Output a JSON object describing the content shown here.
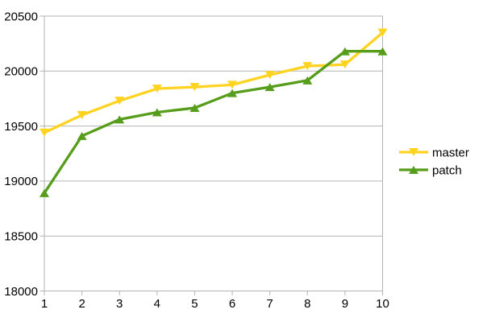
{
  "chart_data": {
    "type": "line",
    "title": "",
    "xlabel": "",
    "ylabel": "",
    "x": [
      "1",
      "2",
      "3",
      "4",
      "5",
      "6",
      "7",
      "8",
      "9",
      "10"
    ],
    "series": [
      {
        "name": "master",
        "color": "#FFD320",
        "marker": "triangle-down",
        "values": [
          19440,
          19600,
          19730,
          19840,
          19855,
          19875,
          19965,
          20045,
          20060,
          20350
        ]
      },
      {
        "name": "patch",
        "color": "#579D1C",
        "marker": "triangle-up",
        "values": [
          18890,
          19410,
          19560,
          19625,
          19665,
          19800,
          19855,
          19915,
          20180,
          20180
        ]
      }
    ],
    "ylim": [
      18000,
      20500
    ],
    "yticks": [
      18000,
      18500,
      19000,
      19500,
      20000,
      20500
    ],
    "grid": "horizontal",
    "legend_position": "right",
    "axis_color": "#B3B3B3",
    "text_color": "#000000",
    "background_color": "#FFFFFF"
  }
}
